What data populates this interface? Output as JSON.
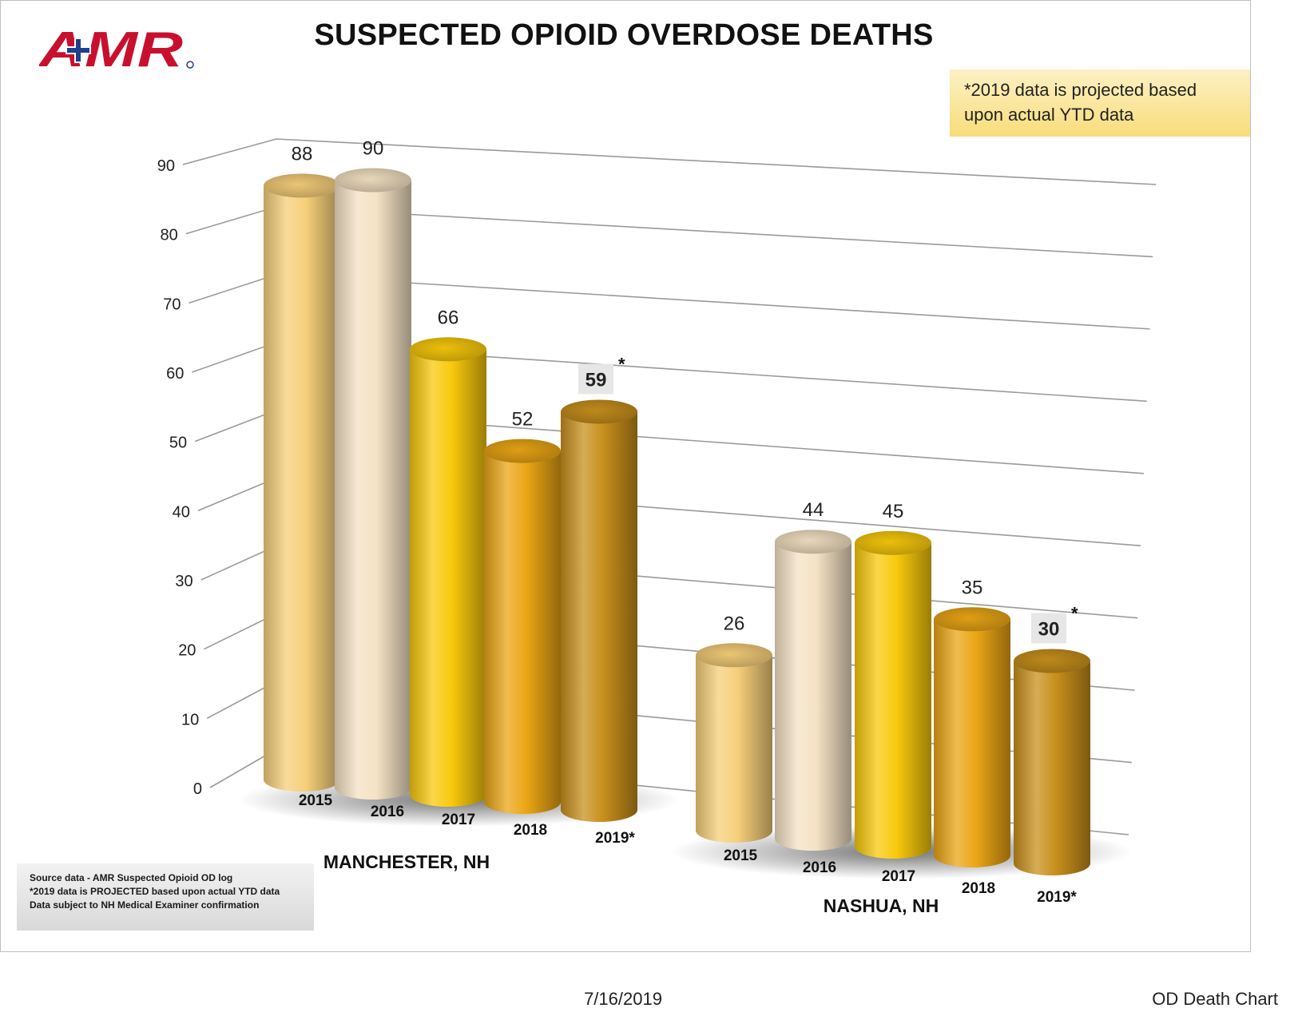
{
  "logo": {
    "text": "AMR",
    "colors": {
      "red": "#c8102e",
      "blue": "#1f3f8f"
    }
  },
  "note": {
    "lines": [
      "*2019 data is projected based",
      "upon actual YTD data"
    ]
  },
  "source_notes": [
    "Source data - AMR Suspected Opioid OD log",
    "*2019 data is PROJECTED based upon actual YTD data",
    "Data subject to NH Medical Examiner confirmation"
  ],
  "footer": {
    "date": "7/16/2019",
    "name": "OD Death Chart"
  },
  "chart_data": {
    "type": "bar",
    "title": "SUSPECTED OPIOID OVERDOSE DEATHS",
    "ylim": [
      0,
      90
    ],
    "yticks": [
      "0",
      "10",
      "20",
      "30",
      "40",
      "50",
      "60",
      "70",
      "80",
      "90"
    ],
    "grid": true,
    "style": "3d-cylinder",
    "groups": [
      {
        "name": "MANCHESTER, NH",
        "categories": [
          "2015",
          "2016",
          "2017",
          "2018",
          "2019*"
        ],
        "values": [
          88,
          90,
          66,
          52,
          59
        ],
        "labels": [
          "88",
          "90",
          "66",
          "52",
          "59"
        ],
        "projected": [
          false,
          false,
          false,
          false,
          true
        ]
      },
      {
        "name": "NASHUA, NH",
        "categories": [
          "2015",
          "2016",
          "2017",
          "2018",
          "2019*"
        ],
        "values": [
          26,
          44,
          45,
          35,
          30
        ],
        "labels": [
          "26",
          "44",
          "45",
          "35",
          "30"
        ],
        "projected": [
          false,
          false,
          false,
          false,
          true
        ]
      }
    ],
    "projected_marker": "*",
    "series_colors": [
      "#f6cf7a",
      "#f4e2c4",
      "#f8c90c",
      "#eba615",
      "#c8901c"
    ]
  }
}
